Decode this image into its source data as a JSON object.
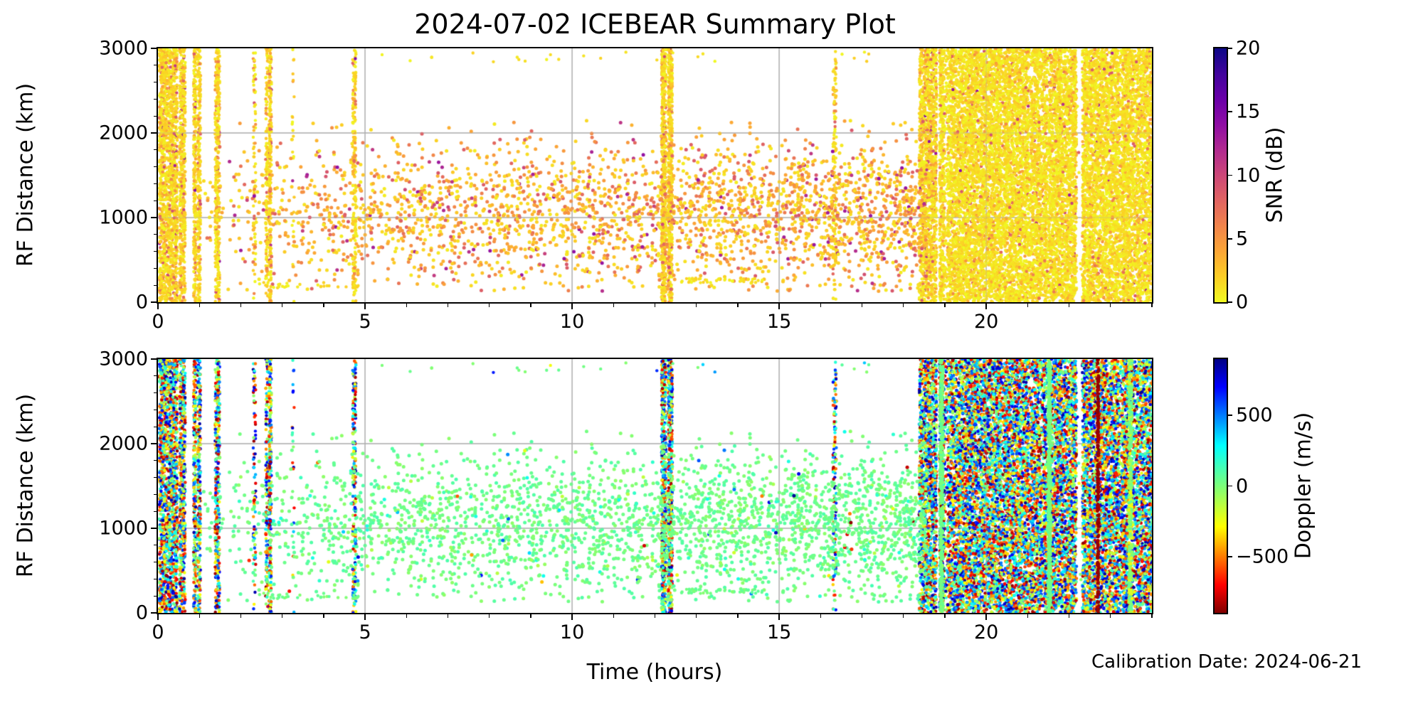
{
  "title": "2024-07-02 ICEBEAR Summary Plot",
  "xlabel": "Time (hours)",
  "calibration_note": "Calibration Date: 2024-06-21",
  "colors": {
    "background": "#ffffff",
    "grid": "#b0b0b0",
    "spine": "#000000",
    "text": "#000000"
  },
  "chart_data": [
    {
      "name": "snr_panel",
      "type": "scatter",
      "ylabel": "RF Distance (km)",
      "xlim": [
        0,
        24
      ],
      "ylim": [
        0,
        3000
      ],
      "xticks": [
        {
          "v": 0,
          "label": "0"
        },
        {
          "v": 5,
          "label": "5"
        },
        {
          "v": 10,
          "label": "10"
        },
        {
          "v": 15,
          "label": "15"
        },
        {
          "v": 20,
          "label": "20"
        }
      ],
      "yticks": [
        {
          "v": 0,
          "label": "0"
        },
        {
          "v": 1000,
          "label": "1000"
        },
        {
          "v": 2000,
          "label": "2000"
        },
        {
          "v": 3000,
          "label": "3000"
        }
      ],
      "x_minor_step": 1,
      "y_minor_step": 200,
      "grid_x": [
        5,
        10,
        15,
        20
      ],
      "grid_y": [
        1000,
        2000
      ],
      "colorbar": {
        "label": "SNR (dB)",
        "range": [
          0,
          20
        ],
        "ticks": [
          {
            "v": 0,
            "label": "0"
          },
          {
            "v": 5,
            "label": "5"
          },
          {
            "v": 10,
            "label": "10"
          },
          {
            "v": 15,
            "label": "15"
          },
          {
            "v": 20,
            "label": "20"
          }
        ],
        "stops": [
          [
            0,
            "#f0f921"
          ],
          [
            0.1,
            "#fcce25"
          ],
          [
            0.2,
            "#fca636"
          ],
          [
            0.3,
            "#f1844b"
          ],
          [
            0.4,
            "#e16462"
          ],
          [
            0.5,
            "#cc4778"
          ],
          [
            0.6,
            "#b12a90"
          ],
          [
            0.7,
            "#8f0da4"
          ],
          [
            0.8,
            "#6a00a8"
          ],
          [
            0.9,
            "#41049d"
          ],
          [
            1,
            "#0d0887"
          ]
        ]
      },
      "mixes": {
        "stripe": [
          [
            0.8,
            0,
            2.5
          ],
          [
            0.14,
            2.5,
            6
          ],
          [
            0.05,
            6,
            10
          ],
          [
            0.01,
            10,
            15
          ]
        ],
        "block": [
          [
            0.86,
            0,
            2
          ],
          [
            0.11,
            2,
            5
          ],
          [
            0.025,
            5,
            9
          ],
          [
            0.005,
            9,
            14
          ]
        ],
        "cloud": [
          [
            0.4,
            0.5,
            2.5
          ],
          [
            0.35,
            2.5,
            5.5
          ],
          [
            0.2,
            5.5,
            9
          ],
          [
            0.05,
            9,
            14
          ]
        ],
        "low": [
          [
            1,
            0,
            2
          ]
        ],
        "mixrow": [
          [
            1,
            0,
            2
          ]
        ]
      },
      "features": [
        {
          "gid": 1,
          "kind": "stripe",
          "x": [
            0.03,
            0.47
          ],
          "n": 1500,
          "value": "stripe"
        },
        {
          "gid": 2,
          "kind": "stripe",
          "x": [
            0.52,
            0.66
          ],
          "n": 520,
          "value": "stripe"
        },
        {
          "gid": 3,
          "kind": "stripe",
          "x": [
            0.86,
            0.92
          ],
          "n": 260,
          "value": "stripe"
        },
        {
          "gid": 4,
          "kind": "stripe",
          "x": [
            0.96,
            1.03
          ],
          "n": 260,
          "value": "stripe"
        },
        {
          "gid": 5,
          "kind": "stripe",
          "x": [
            1.38,
            1.49
          ],
          "n": 380,
          "value": "stripe"
        },
        {
          "gid": 6,
          "kind": "stripe",
          "x": [
            2.3,
            2.36
          ],
          "n": 80,
          "value": "stripe"
        },
        {
          "gid": 7,
          "kind": "stripe",
          "x": [
            2.6,
            2.65
          ],
          "n": 120,
          "value": "stripe"
        },
        {
          "gid": 8,
          "kind": "stripe",
          "x": [
            2.68,
            2.74
          ],
          "n": 260,
          "value": "stripe"
        },
        {
          "gid": 9,
          "kind": "stripe",
          "x": [
            3.24,
            3.29
          ],
          "n": 25,
          "value": "stripe"
        },
        {
          "gid": 10,
          "kind": "stripe",
          "x": [
            4.7,
            4.78
          ],
          "n": 200,
          "value": "stripe"
        },
        {
          "gid": 11,
          "kind": "stripe",
          "x": [
            12.16,
            12.27
          ],
          "n": 500,
          "value": "stripe"
        },
        {
          "gid": 12,
          "kind": "stripe",
          "x": [
            12.32,
            12.42
          ],
          "n": 480,
          "value": "stripe"
        },
        {
          "gid": 13,
          "kind": "stripe",
          "x": [
            16.3,
            16.38
          ],
          "n": 130,
          "value": "stripe"
        },
        {
          "gid": 14,
          "kind": "stripe",
          "x": [
            18.38,
            18.8
          ],
          "n": 1400,
          "value": "stripe"
        },
        {
          "gid": 15,
          "kind": "cloud",
          "x": [
            0.9,
            18.55
          ],
          "n": 3000,
          "ramp": 0.65,
          "ygauss": [
            1050,
            430
          ],
          "yclip": [
            130,
            2150
          ],
          "r": 2.5,
          "value": "cloud"
        },
        {
          "gid": 16,
          "kind": "row",
          "x": [
            12.6,
            14.7
          ],
          "y": [
            230,
            285
          ],
          "n": 48,
          "value": "low"
        },
        {
          "gid": 17,
          "kind": "row",
          "x": [
            2.3,
            4.9
          ],
          "y": [
            170,
            235
          ],
          "n": 30,
          "value": "low"
        },
        {
          "gid": 18,
          "kind": "row",
          "x": [
            4.5,
            17.5
          ],
          "y": [
            2840,
            2960
          ],
          "n": 26,
          "value": "mixrow"
        },
        {
          "gid": 19,
          "kind": "block",
          "x": [
            18.87,
            24.05
          ],
          "n": 15000,
          "r": 2.25,
          "value": "block",
          "gaps": [
            [
              22.18,
              22.32,
              0.02
            ],
            [
              18.98,
              19.06,
              0.35
            ],
            [
              20.37,
              20.44,
              0.55
            ],
            [
              21.02,
              21.08,
              0.6
            ],
            [
              21.32,
              21.38,
              0.68
            ],
            [
              21.47,
              21.52,
              0.55
            ],
            [
              23.2,
              23.27,
              0.62
            ],
            [
              23.55,
              23.62,
              0.7
            ]
          ]
        }
      ]
    },
    {
      "name": "doppler_panel",
      "type": "scatter",
      "ylabel": "RF Distance (km)",
      "xlim": [
        0,
        24
      ],
      "ylim": [
        0,
        3000
      ],
      "xticks": [
        {
          "v": 0,
          "label": "0"
        },
        {
          "v": 5,
          "label": "5"
        },
        {
          "v": 10,
          "label": "10"
        },
        {
          "v": 15,
          "label": "15"
        },
        {
          "v": 20,
          "label": "20"
        }
      ],
      "yticks": [
        {
          "v": 0,
          "label": "0"
        },
        {
          "v": 1000,
          "label": "1000"
        },
        {
          "v": 2000,
          "label": "2000"
        },
        {
          "v": 3000,
          "label": "3000"
        }
      ],
      "x_minor_step": 1,
      "y_minor_step": 200,
      "grid_x": [
        5,
        10,
        15,
        20
      ],
      "grid_y": [
        1000,
        2000
      ],
      "colorbar": {
        "label": "Doppler (m/s)",
        "range": [
          -900,
          900
        ],
        "ticks": [
          {
            "v": 500,
            "label": "500"
          },
          {
            "v": 0,
            "label": "0"
          },
          {
            "v": -500,
            "label": "−500"
          }
        ],
        "stops": [
          [
            0,
            "#800000"
          ],
          [
            0.11,
            "#ff0000"
          ],
          [
            0.34,
            "#ffff00"
          ],
          [
            0.5,
            "#7cff79"
          ],
          [
            0.66,
            "#00ffff"
          ],
          [
            0.89,
            "#0000ff"
          ],
          [
            1,
            "#000083"
          ]
        ]
      },
      "mixes": {
        "stripe": [
          [
            1,
            -880,
            880
          ]
        ],
        "block": [
          [
            1,
            -880,
            880
          ]
        ],
        "cloud": [
          [
            0.9,
            -40,
            110
          ],
          [
            0.08,
            -160,
            260
          ],
          [
            0.02,
            -880,
            880
          ]
        ],
        "low": [
          [
            1,
            -30,
            80
          ]
        ],
        "mixrow": [
          [
            0.5,
            -40,
            80
          ],
          [
            0.5,
            -880,
            880
          ]
        ],
        "darkred": [
          [
            1,
            -885,
            -835
          ]
        ],
        "greenband": [
          [
            0.65,
            -60,
            85
          ],
          [
            0.35,
            -320,
            -90
          ]
        ]
      },
      "features": [
        {
          "gid": 1,
          "kind": "stripe",
          "x": [
            0.03,
            0.47
          ],
          "n": 1500,
          "value": "stripe"
        },
        {
          "gid": 2,
          "kind": "stripe",
          "x": [
            0.52,
            0.66
          ],
          "n": 520,
          "value": "stripe"
        },
        {
          "gid": 3,
          "kind": "stripe",
          "x": [
            0.86,
            0.92
          ],
          "n": 260,
          "value": "stripe"
        },
        {
          "gid": 4,
          "kind": "stripe",
          "x": [
            0.96,
            1.03
          ],
          "n": 260,
          "value": "stripe"
        },
        {
          "gid": 5,
          "kind": "stripe",
          "x": [
            1.38,
            1.49
          ],
          "n": 380,
          "value": "stripe"
        },
        {
          "gid": 6,
          "kind": "stripe",
          "x": [
            2.3,
            2.36
          ],
          "n": 80,
          "value": "stripe"
        },
        {
          "gid": 7,
          "kind": "stripe",
          "x": [
            2.6,
            2.65
          ],
          "n": 120,
          "value": "stripe"
        },
        {
          "gid": 8,
          "kind": "stripe",
          "x": [
            2.68,
            2.74
          ],
          "n": 260,
          "value": "stripe"
        },
        {
          "gid": 9,
          "kind": "stripe",
          "x": [
            3.24,
            3.29
          ],
          "n": 25,
          "value": "stripe"
        },
        {
          "gid": 10,
          "kind": "stripe",
          "x": [
            4.7,
            4.78
          ],
          "n": 200,
          "value": "stripe"
        },
        {
          "gid": 11,
          "kind": "stripe",
          "x": [
            12.16,
            12.27
          ],
          "n": 500,
          "value": "stripe"
        },
        {
          "gid": 12,
          "kind": "stripe",
          "x": [
            12.32,
            12.42
          ],
          "n": 480,
          "value": "stripe"
        },
        {
          "gid": 13,
          "kind": "stripe",
          "x": [
            16.3,
            16.38
          ],
          "n": 130,
          "value": "stripe"
        },
        {
          "gid": 14,
          "kind": "stripe",
          "x": [
            18.38,
            18.8
          ],
          "n": 1400,
          "value": "stripe"
        },
        {
          "gid": 15,
          "kind": "cloud",
          "x": [
            0.9,
            18.55
          ],
          "n": 3000,
          "ramp": 0.65,
          "ygauss": [
            1050,
            430
          ],
          "yclip": [
            130,
            2150
          ],
          "r": 2.5,
          "value": "cloud"
        },
        {
          "gid": 16,
          "kind": "row",
          "x": [
            12.6,
            14.7
          ],
          "y": [
            230,
            285
          ],
          "n": 48,
          "value": "low"
        },
        {
          "gid": 17,
          "kind": "row",
          "x": [
            2.3,
            4.9
          ],
          "y": [
            170,
            235
          ],
          "n": 30,
          "value": "low"
        },
        {
          "gid": 18,
          "kind": "row",
          "x": [
            4.5,
            17.5
          ],
          "y": [
            2840,
            2960
          ],
          "n": 26,
          "value": "mixrow"
        },
        {
          "gid": 19,
          "kind": "block",
          "x": [
            18.87,
            24.05
          ],
          "n": 15000,
          "r": 2.25,
          "value": "block",
          "gaps": [
            [
              22.18,
              22.32,
              0.02
            ],
            [
              18.98,
              19.06,
              0.35
            ],
            [
              20.37,
              20.44,
              0.55
            ],
            [
              21.02,
              21.08,
              0.6
            ],
            [
              21.32,
              21.38,
              0.68
            ],
            [
              21.47,
              21.52,
              0.55
            ],
            [
              23.2,
              23.27,
              0.62
            ],
            [
              23.55,
              23.62,
              0.7
            ]
          ]
        },
        {
          "gid": 20,
          "kind": "stripe",
          "x": [
            18.88,
            18.96
          ],
          "n": 420,
          "value": "low"
        },
        {
          "gid": 21,
          "kind": "stripe",
          "x": [
            21.49,
            21.56
          ],
          "n": 500,
          "value": "low"
        },
        {
          "gid": 22,
          "kind": "stripe",
          "x": [
            22.68,
            22.72
          ],
          "n": 280,
          "value": "darkred"
        },
        {
          "gid": 23,
          "kind": "stripe",
          "x": [
            23.44,
            23.52
          ],
          "n": 380,
          "value": "greenband"
        }
      ]
    }
  ]
}
